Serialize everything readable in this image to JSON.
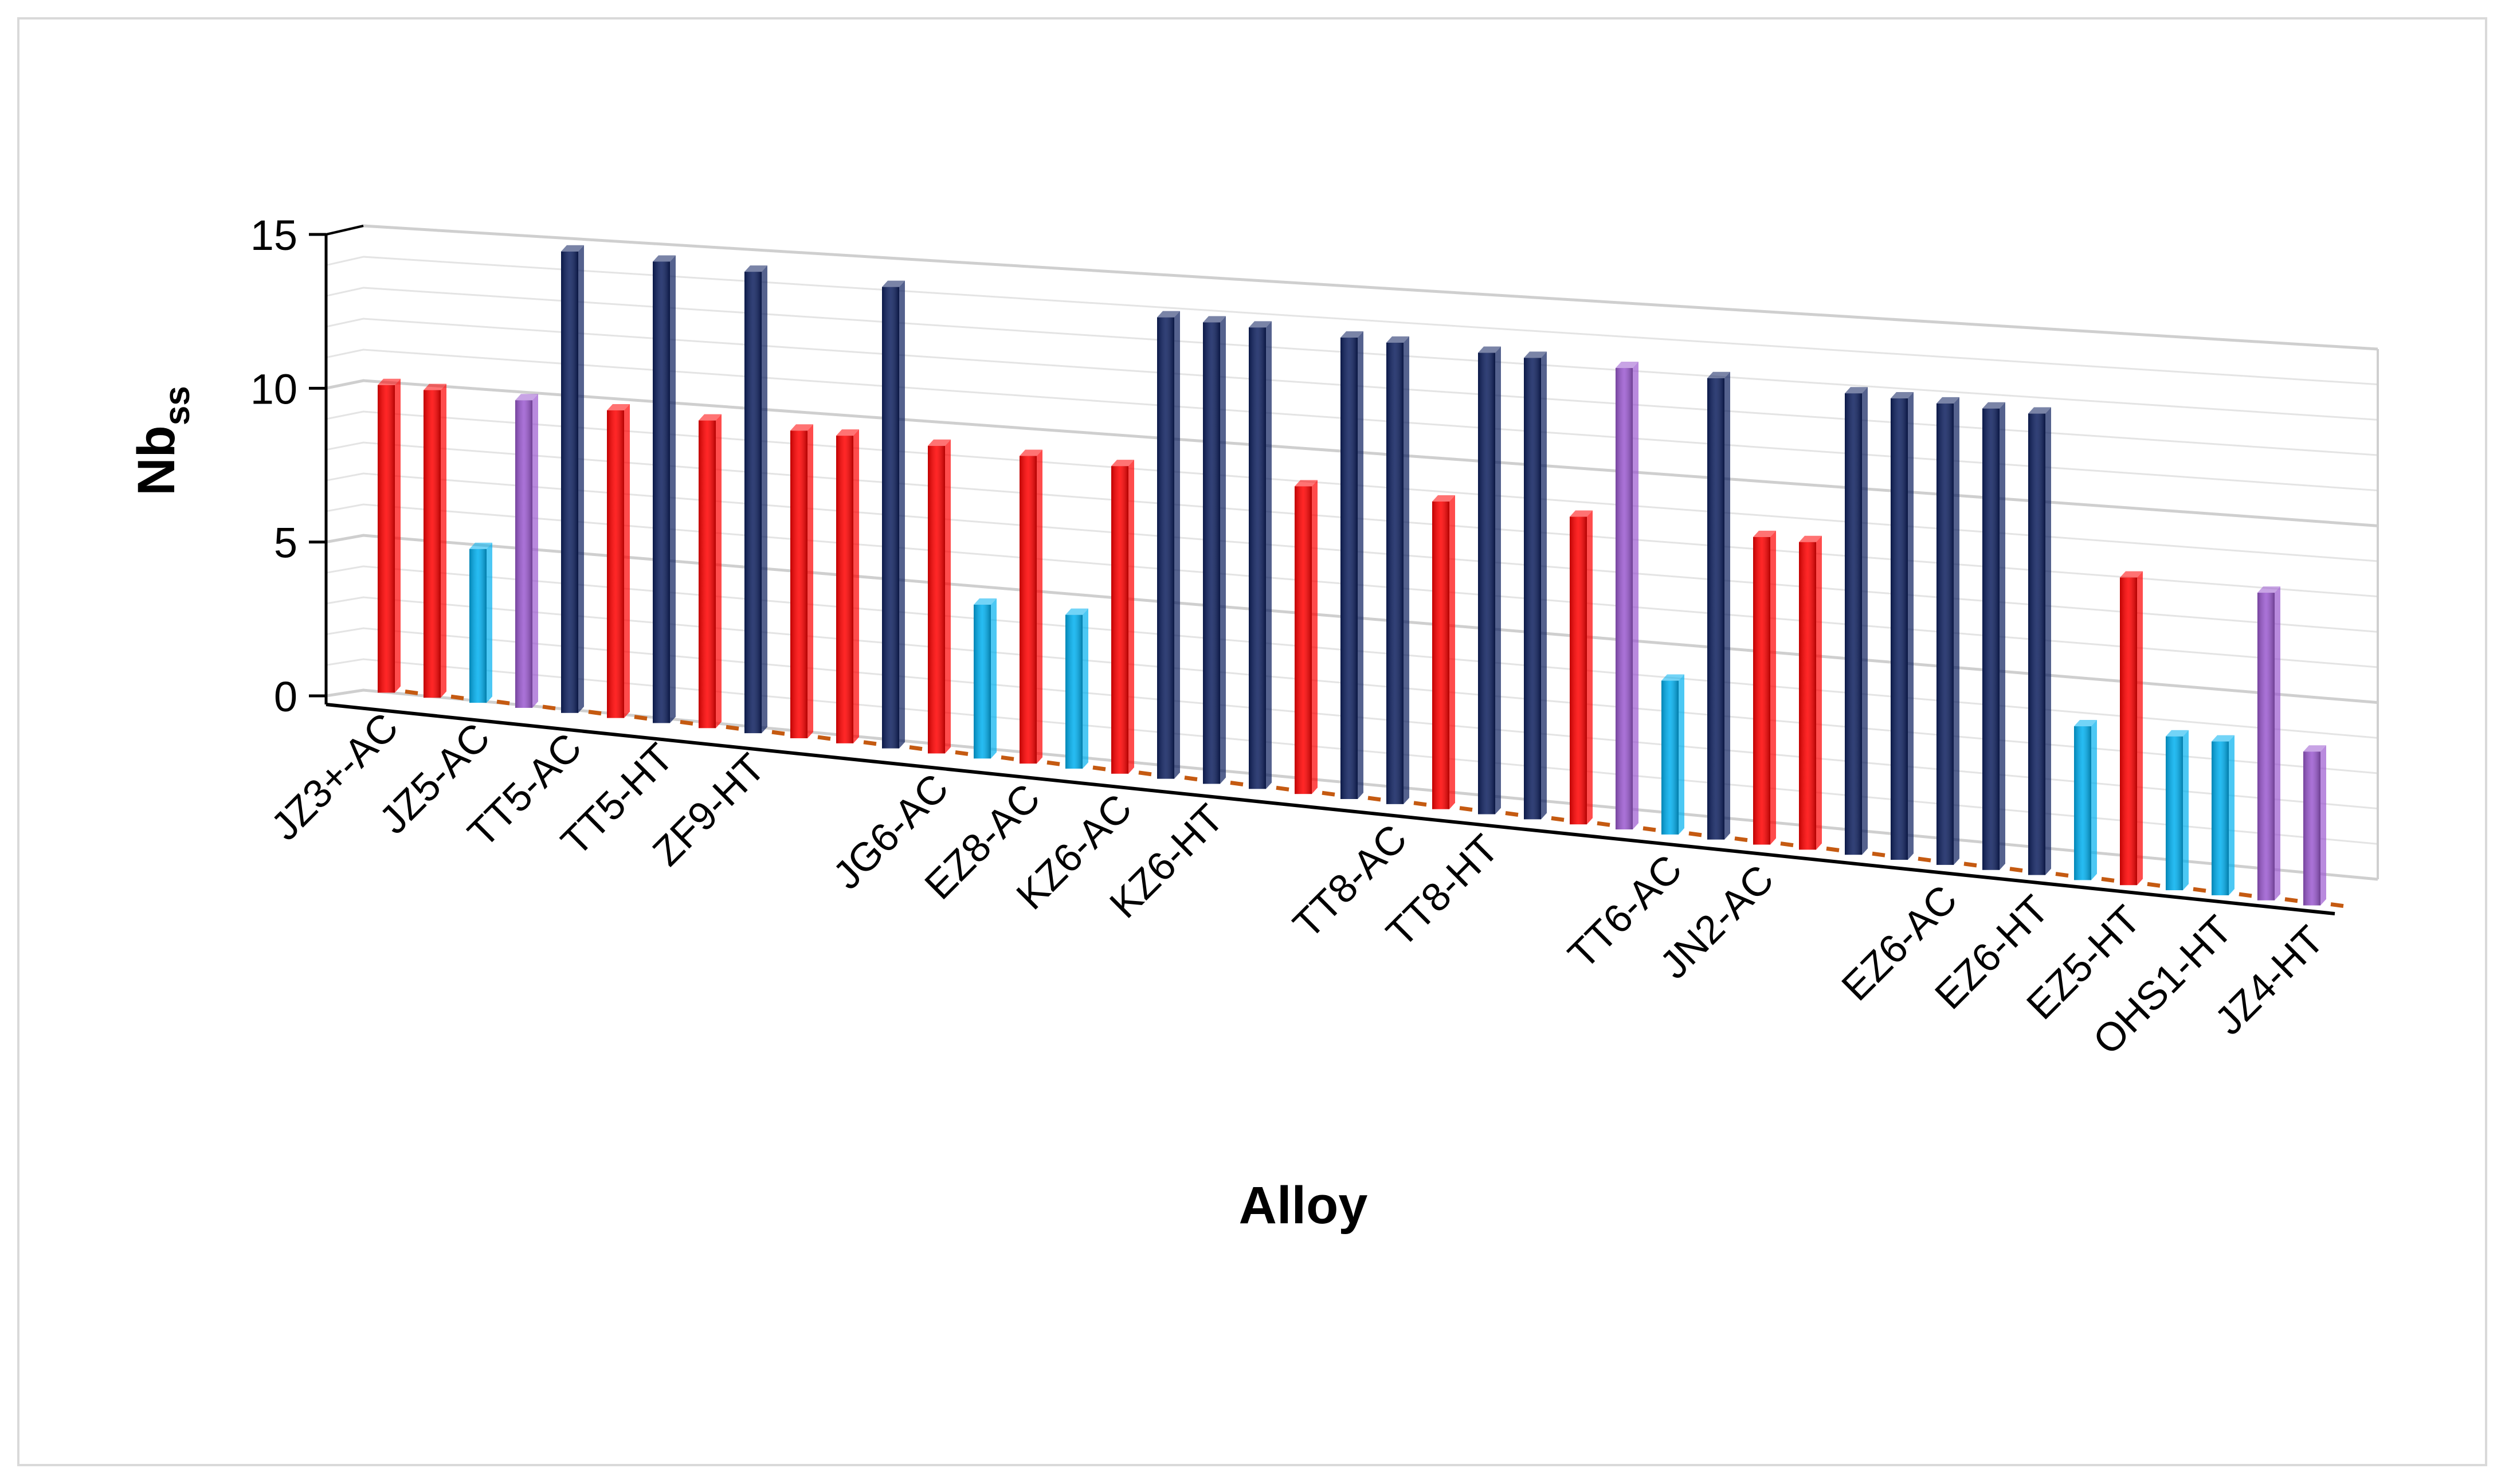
{
  "chart_data": {
    "type": "bar",
    "xlabel": "Alloy",
    "ylabel": "Nb",
    "ylabel_subscript": "ss",
    "ylim": [
      0,
      15
    ],
    "yticks": [
      "0",
      "5",
      "10",
      "15"
    ],
    "grid": true,
    "legend": "none",
    "categories": [
      "JZ3+-AC",
      "",
      "JZ5-AC",
      "",
      "TT5-AC",
      "",
      "TT5-HT",
      "",
      "ZF9-HT",
      "",
      "",
      "",
      "JG6-AC",
      "",
      "EZ8-AC",
      "",
      "KZ6-AC",
      "",
      "KZ6-HT",
      "",
      "",
      "",
      "TT8-AC",
      "",
      "TT8-HT",
      "",
      "",
      "",
      "TT6-AC",
      "",
      "JN2-AC",
      "",
      "",
      "",
      "EZ6-AC",
      "",
      "EZ6-HT",
      "",
      "EZ5-HT",
      "",
      "OHS1-HT",
      "",
      "JZ4-HT"
    ],
    "values": [
      10,
      10,
      5,
      10,
      15,
      10,
      15,
      10,
      15,
      10,
      10,
      15,
      10,
      5,
      10,
      5,
      10,
      15,
      15,
      15,
      10,
      15,
      15,
      10,
      15,
      15,
      10,
      15,
      5,
      15,
      10,
      10,
      15,
      15,
      15,
      15,
      15,
      5,
      10,
      5,
      5,
      10,
      5
    ],
    "bar_colors": [
      "#ff0000",
      "#ff0000",
      "#00b0f0",
      "#9b59d0",
      "#0d1f5e",
      "#ff0000",
      "#0d1f5e",
      "#ff0000",
      "#0d1f5e",
      "#ff0000",
      "#ff0000",
      "#0d1f5e",
      "#ff0000",
      "#00b0f0",
      "#ff0000",
      "#00b0f0",
      "#ff0000",
      "#0d1f5e",
      "#0d1f5e",
      "#0d1f5e",
      "#ff0000",
      "#0d1f5e",
      "#0d1f5e",
      "#ff0000",
      "#0d1f5e",
      "#0d1f5e",
      "#ff0000",
      "#9b59d0",
      "#00b0f0",
      "#0d1f5e",
      "#ff0000",
      "#ff0000",
      "#0d1f5e",
      "#0d1f5e",
      "#0d1f5e",
      "#0d1f5e",
      "#0d1f5e",
      "#00b0f0",
      "#ff0000",
      "#00b0f0",
      "#00b0f0",
      "#9b59d0",
      "#9b59d0"
    ],
    "floor_marker_color": "#c55a11"
  }
}
